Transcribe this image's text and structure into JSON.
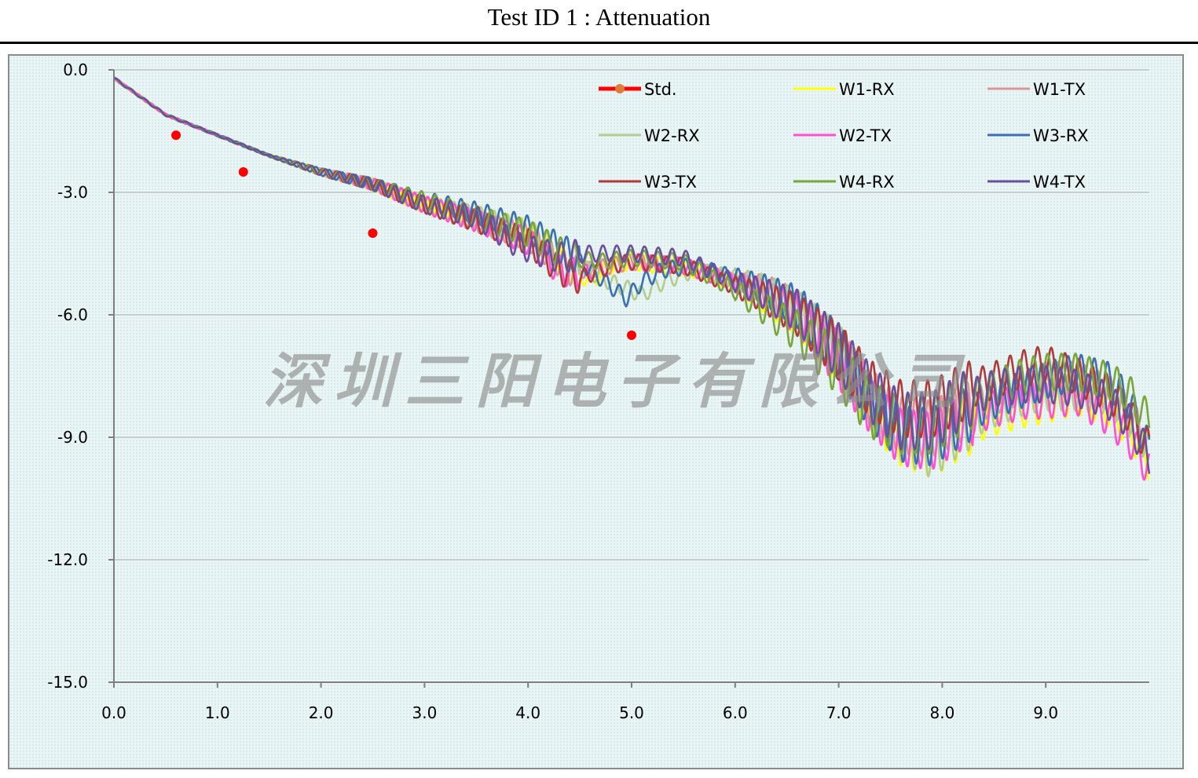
{
  "page": {
    "title": "Test ID 1 : Attenuation",
    "watermark": "深圳三阳电子有限公司"
  },
  "colors": {
    "background": "#eaf5f5",
    "grid": "#b9c3c3",
    "axis": "#7f7f7f",
    "std": "#ff0000",
    "std_marker": "#e07b39"
  },
  "chart_data": {
    "type": "line",
    "title": "Test ID 1 : Attenuation",
    "xlabel": "",
    "ylabel": "",
    "xlim": [
      0,
      10
    ],
    "ylim": [
      -15,
      0
    ],
    "x_ticks": [
      "0.0",
      "1.0",
      "2.0",
      "3.0",
      "4.0",
      "5.0",
      "6.0",
      "7.0",
      "8.0",
      "9.0"
    ],
    "y_ticks": [
      "0.0",
      "-3.0",
      "-6.0",
      "-9.0",
      "-12.0",
      "-15.0"
    ],
    "grid": "horizontal",
    "legend": "top-right",
    "std": {
      "name": "Std.",
      "points": [
        [
          0.6,
          -1.6
        ],
        [
          1.25,
          -2.5
        ],
        [
          2.5,
          -4.0
        ],
        [
          5.0,
          -6.5
        ]
      ]
    },
    "series": [
      {
        "name": "W1-RX",
        "color": "#ffff00",
        "points": [
          [
            0,
            -0.2
          ],
          [
            0.5,
            -1.1
          ],
          [
            1,
            -1.6
          ],
          [
            1.5,
            -2.1
          ],
          [
            2,
            -2.5
          ],
          [
            2.5,
            -2.8
          ],
          [
            3,
            -3.3
          ],
          [
            3.5,
            -3.6
          ],
          [
            4,
            -4.0
          ],
          [
            4.4,
            -4.8
          ],
          [
            4.6,
            -5.2
          ],
          [
            4.8,
            -4.8
          ],
          [
            5,
            -4.7
          ],
          [
            5.3,
            -4.8
          ],
          [
            5.6,
            -4.9
          ],
          [
            6,
            -5.2
          ],
          [
            6.3,
            -5.6
          ],
          [
            6.6,
            -6.0
          ],
          [
            7,
            -7.0
          ],
          [
            7.3,
            -8.2
          ],
          [
            7.6,
            -9.0
          ],
          [
            7.9,
            -9.3
          ],
          [
            8.2,
            -8.8
          ],
          [
            8.5,
            -8.5
          ],
          [
            8.8,
            -8.3
          ],
          [
            9,
            -8.2
          ],
          [
            9.3,
            -8.0
          ],
          [
            9.6,
            -8.3
          ],
          [
            9.8,
            -8.8
          ],
          [
            10,
            -9.6
          ]
        ]
      },
      {
        "name": "W1-TX",
        "color": "#d99694",
        "points": [
          [
            0,
            -0.2
          ],
          [
            0.5,
            -1.1
          ],
          [
            1,
            -1.6
          ],
          [
            1.5,
            -2.1
          ],
          [
            2,
            -2.5
          ],
          [
            2.5,
            -2.8
          ],
          [
            3,
            -3.3
          ],
          [
            3.5,
            -3.7
          ],
          [
            4,
            -4.1
          ],
          [
            4.4,
            -4.9
          ],
          [
            4.6,
            -4.9
          ],
          [
            5,
            -4.7
          ],
          [
            5.5,
            -4.8
          ],
          [
            6,
            -5.2
          ],
          [
            6.3,
            -5.4
          ],
          [
            6.6,
            -5.9
          ],
          [
            7,
            -7.0
          ],
          [
            7.3,
            -8.0
          ],
          [
            7.6,
            -8.7
          ],
          [
            7.9,
            -8.8
          ],
          [
            8.2,
            -8.4
          ],
          [
            8.5,
            -8.0
          ],
          [
            8.8,
            -7.7
          ],
          [
            9,
            -7.6
          ],
          [
            9.3,
            -7.6
          ],
          [
            9.6,
            -7.9
          ],
          [
            9.8,
            -8.4
          ],
          [
            10,
            -9.2
          ]
        ]
      },
      {
        "name": "W2-RX",
        "color": "#b3cc8f",
        "points": [
          [
            0,
            -0.2
          ],
          [
            0.5,
            -1.1
          ],
          [
            1,
            -1.6
          ],
          [
            1.5,
            -2.1
          ],
          [
            2,
            -2.5
          ],
          [
            2.5,
            -2.8
          ],
          [
            3,
            -3.3
          ],
          [
            3.5,
            -3.6
          ],
          [
            4,
            -4.0
          ],
          [
            4.4,
            -4.6
          ],
          [
            4.7,
            -5.1
          ],
          [
            4.9,
            -5.3
          ],
          [
            5.1,
            -5.5
          ],
          [
            5.3,
            -5.2
          ],
          [
            5.6,
            -4.9
          ],
          [
            6,
            -5.1
          ],
          [
            6.3,
            -5.4
          ],
          [
            6.6,
            -5.9
          ],
          [
            7,
            -6.9
          ],
          [
            7.3,
            -8.1
          ],
          [
            7.6,
            -8.9
          ],
          [
            7.9,
            -9.3
          ],
          [
            8.2,
            -8.7
          ],
          [
            8.5,
            -8.3
          ],
          [
            8.8,
            -8.0
          ],
          [
            9,
            -7.9
          ],
          [
            9.3,
            -7.9
          ],
          [
            9.6,
            -8.0
          ],
          [
            9.8,
            -8.5
          ],
          [
            10,
            -9.3
          ]
        ]
      },
      {
        "name": "W2-TX",
        "color": "#ff4fd2",
        "points": [
          [
            0,
            -0.2
          ],
          [
            0.5,
            -1.1
          ],
          [
            1,
            -1.6
          ],
          [
            1.5,
            -2.1
          ],
          [
            2,
            -2.5
          ],
          [
            2.5,
            -2.8
          ],
          [
            3,
            -3.3
          ],
          [
            3.5,
            -3.7
          ],
          [
            4,
            -4.2
          ],
          [
            4.3,
            -4.9
          ],
          [
            4.5,
            -5.0
          ],
          [
            4.8,
            -4.8
          ],
          [
            5,
            -4.7
          ],
          [
            5.5,
            -4.8
          ],
          [
            6,
            -5.2
          ],
          [
            6.3,
            -5.5
          ],
          [
            6.6,
            -6.0
          ],
          [
            7,
            -7.1
          ],
          [
            7.3,
            -8.2
          ],
          [
            7.6,
            -9.0
          ],
          [
            7.9,
            -9.1
          ],
          [
            8.2,
            -8.6
          ],
          [
            8.5,
            -8.3
          ],
          [
            8.8,
            -8.1
          ],
          [
            9,
            -8.1
          ],
          [
            9.3,
            -8.0
          ],
          [
            9.6,
            -8.5
          ],
          [
            9.8,
            -9.0
          ],
          [
            10,
            -9.8
          ]
        ]
      },
      {
        "name": "W3-RX",
        "color": "#3a6fb5",
        "points": [
          [
            0,
            -0.2
          ],
          [
            0.5,
            -1.1
          ],
          [
            1,
            -1.6
          ],
          [
            1.5,
            -2.1
          ],
          [
            2,
            -2.5
          ],
          [
            2.5,
            -2.8
          ],
          [
            3,
            -3.2
          ],
          [
            3.5,
            -3.5
          ],
          [
            4,
            -3.9
          ],
          [
            4.4,
            -4.5
          ],
          [
            4.7,
            -5.1
          ],
          [
            4.95,
            -5.6
          ],
          [
            5.1,
            -5.2
          ],
          [
            5.3,
            -4.9
          ],
          [
            5.6,
            -4.8
          ],
          [
            6,
            -5.1
          ],
          [
            6.3,
            -5.4
          ],
          [
            6.6,
            -5.8
          ],
          [
            7,
            -6.9
          ],
          [
            7.3,
            -8.1
          ],
          [
            7.6,
            -8.9
          ],
          [
            7.9,
            -9.0
          ],
          [
            8.2,
            -8.5
          ],
          [
            8.5,
            -8.1
          ],
          [
            8.8,
            -7.8
          ],
          [
            9,
            -7.6
          ],
          [
            9.3,
            -7.4
          ],
          [
            9.6,
            -7.6
          ],
          [
            9.8,
            -8.1
          ],
          [
            10,
            -9.3
          ]
        ]
      },
      {
        "name": "W3-TX",
        "color": "#b03a3a",
        "points": [
          [
            0,
            -0.2
          ],
          [
            0.5,
            -1.1
          ],
          [
            1,
            -1.6
          ],
          [
            1.5,
            -2.1
          ],
          [
            2,
            -2.5
          ],
          [
            2.5,
            -2.8
          ],
          [
            3,
            -3.3
          ],
          [
            3.5,
            -3.7
          ],
          [
            4,
            -4.2
          ],
          [
            4.3,
            -4.9
          ],
          [
            4.5,
            -5.1
          ],
          [
            4.8,
            -4.8
          ],
          [
            5,
            -4.7
          ],
          [
            5.5,
            -4.8
          ],
          [
            6,
            -5.3
          ],
          [
            6.3,
            -5.6
          ],
          [
            6.6,
            -6.0
          ],
          [
            7,
            -6.9
          ],
          [
            7.3,
            -7.8
          ],
          [
            7.6,
            -8.3
          ],
          [
            7.9,
            -8.3
          ],
          [
            8.2,
            -7.9
          ],
          [
            8.5,
            -7.6
          ],
          [
            8.8,
            -7.3
          ],
          [
            9,
            -7.2
          ],
          [
            9.3,
            -7.5
          ],
          [
            9.6,
            -7.9
          ],
          [
            9.8,
            -8.4
          ],
          [
            10,
            -9.3
          ]
        ]
      },
      {
        "name": "W4-RX",
        "color": "#7aa53b",
        "points": [
          [
            0,
            -0.2
          ],
          [
            0.5,
            -1.1
          ],
          [
            1,
            -1.6
          ],
          [
            1.5,
            -2.1
          ],
          [
            2,
            -2.5
          ],
          [
            2.5,
            -2.8
          ],
          [
            3,
            -3.2
          ],
          [
            3.5,
            -3.6
          ],
          [
            4,
            -4.0
          ],
          [
            4.4,
            -4.6
          ],
          [
            4.7,
            -4.7
          ],
          [
            5,
            -4.6
          ],
          [
            5.5,
            -4.7
          ],
          [
            6,
            -5.4
          ],
          [
            6.3,
            -5.9
          ],
          [
            6.6,
            -6.4
          ],
          [
            7,
            -7.3
          ],
          [
            7.3,
            -8.3
          ],
          [
            7.6,
            -8.7
          ],
          [
            7.9,
            -8.7
          ],
          [
            8.2,
            -8.2
          ],
          [
            8.5,
            -7.8
          ],
          [
            8.8,
            -7.5
          ],
          [
            9,
            -7.4
          ],
          [
            9.3,
            -7.4
          ],
          [
            9.6,
            -7.6
          ],
          [
            9.8,
            -7.9
          ],
          [
            10,
            -8.6
          ]
        ]
      },
      {
        "name": "W4-TX",
        "color": "#6a4f9e",
        "points": [
          [
            0,
            -0.2
          ],
          [
            0.5,
            -1.1
          ],
          [
            1,
            -1.6
          ],
          [
            1.5,
            -2.1
          ],
          [
            2,
            -2.5
          ],
          [
            2.5,
            -2.8
          ],
          [
            3,
            -3.3
          ],
          [
            3.5,
            -3.6
          ],
          [
            3.9,
            -4.3
          ],
          [
            4.3,
            -4.6
          ],
          [
            4.6,
            -4.5
          ],
          [
            5,
            -4.5
          ],
          [
            5.5,
            -4.6
          ],
          [
            6,
            -5.2
          ],
          [
            6.3,
            -5.5
          ],
          [
            6.6,
            -5.9
          ],
          [
            7,
            -6.9
          ],
          [
            7.3,
            -7.9
          ],
          [
            7.6,
            -8.6
          ],
          [
            7.9,
            -8.6
          ],
          [
            8.2,
            -8.1
          ],
          [
            8.5,
            -7.8
          ],
          [
            8.8,
            -7.7
          ],
          [
            9,
            -7.7
          ],
          [
            9.3,
            -7.8
          ],
          [
            9.6,
            -8.1
          ],
          [
            9.8,
            -8.6
          ],
          [
            10,
            -9.5
          ]
        ]
      }
    ]
  }
}
